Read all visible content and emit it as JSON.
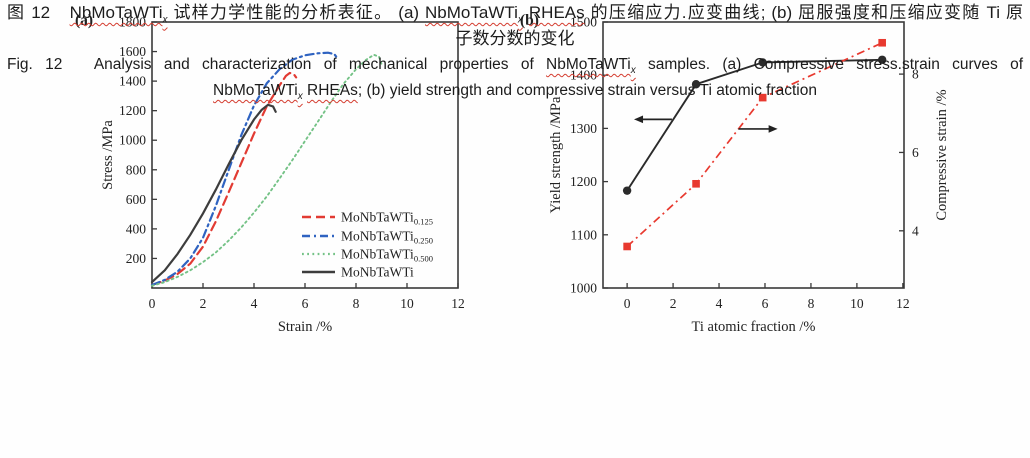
{
  "figure": {
    "panel_a_label": "(a)",
    "panel_b_label": "(b)"
  },
  "chart_data": [
    {
      "type": "line",
      "panel": "a",
      "panel_label": "(a)",
      "xlabel": "Strain /%",
      "ylabel": "Stress /MPa",
      "xlim": [
        0,
        12
      ],
      "ylim": [
        0,
        1800
      ],
      "xticks": [
        0,
        2,
        4,
        6,
        8,
        10,
        12
      ],
      "yticks": [
        200,
        400,
        600,
        800,
        1000,
        1200,
        1400,
        1600,
        1800
      ],
      "grid": false,
      "legend_position": "inside lower right",
      "series": [
        {
          "name": "MoNbTaWTi0.125",
          "legend_base": "MoNbTaWTi",
          "legend_sub": "0.125",
          "color": "#e23b33",
          "style": "dashed",
          "points": [
            [
              0,
              20
            ],
            [
              0.5,
              50
            ],
            [
              1,
              95
            ],
            [
              1.5,
              165
            ],
            [
              2,
              280
            ],
            [
              2.5,
              450
            ],
            [
              3,
              645
            ],
            [
              3.5,
              845
            ],
            [
              4,
              1045
            ],
            [
              4.5,
              1230
            ],
            [
              5,
              1370
            ],
            [
              5.25,
              1435
            ],
            [
              5.4,
              1455
            ],
            [
              5.55,
              1450
            ],
            [
              5.65,
              1425
            ]
          ]
        },
        {
          "name": "MoNbTaWTi0.250",
          "legend_base": "MoNbTaWTi",
          "legend_sub": "0.250",
          "color": "#2f63c1",
          "style": "dashdot",
          "points": [
            [
              0,
              20
            ],
            [
              0.5,
              55
            ],
            [
              1,
              110
            ],
            [
              1.5,
              200
            ],
            [
              2,
              340
            ],
            [
              2.5,
              555
            ],
            [
              3,
              795
            ],
            [
              3.5,
              1035
            ],
            [
              4,
              1235
            ],
            [
              4.5,
              1385
            ],
            [
              5,
              1480
            ],
            [
              5.5,
              1545
            ],
            [
              6,
              1575
            ],
            [
              6.5,
              1588
            ],
            [
              6.9,
              1592
            ],
            [
              7.15,
              1583
            ],
            [
              7.3,
              1548
            ]
          ]
        },
        {
          "name": "MoNbTaWTi0.500",
          "legend_base": "MoNbTaWTi",
          "legend_sub": "0.500",
          "color": "#74c286",
          "style": "dotted",
          "points": [
            [
              0,
              15
            ],
            [
              0.5,
              40
            ],
            [
              1,
              75
            ],
            [
              1.5,
              120
            ],
            [
              2,
              175
            ],
            [
              2.5,
              240
            ],
            [
              3,
              320
            ],
            [
              3.5,
              410
            ],
            [
              4,
              510
            ],
            [
              4.5,
              620
            ],
            [
              5,
              740
            ],
            [
              5.5,
              865
            ],
            [
              6,
              995
            ],
            [
              6.5,
              1125
            ],
            [
              7,
              1255
            ],
            [
              7.5,
              1380
            ],
            [
              8,
              1480
            ],
            [
              8.4,
              1545
            ],
            [
              8.7,
              1578
            ],
            [
              8.9,
              1565
            ],
            [
              9.0,
              1515
            ]
          ]
        },
        {
          "name": "MoNbTaWTi",
          "legend_base": "MoNbTaWTi",
          "legend_sub": "",
          "color": "#3d3d3d",
          "style": "solid",
          "points": [
            [
              0,
              40
            ],
            [
              0.5,
              120
            ],
            [
              1,
              230
            ],
            [
              1.5,
              360
            ],
            [
              2,
              505
            ],
            [
              2.5,
              665
            ],
            [
              3,
              835
            ],
            [
              3.5,
              1000
            ],
            [
              4,
              1140
            ],
            [
              4.3,
              1205
            ],
            [
              4.55,
              1240
            ],
            [
              4.75,
              1228
            ],
            [
              4.85,
              1192
            ]
          ]
        }
      ]
    },
    {
      "type": "line",
      "panel": "b",
      "panel_label": "(b)",
      "xlabel": "Ti atomic fraction /%",
      "ylabel_left": "Yield strength /MPa",
      "ylabel_right": "Compressive strain /%",
      "xlim": [
        -1.05,
        12.05
      ],
      "xticks": [
        0,
        2,
        4,
        6,
        8,
        10,
        12
      ],
      "ylim_left": [
        1000,
        1500
      ],
      "yticks_left": [
        1000,
        1100,
        1200,
        1300,
        1400,
        1500
      ],
      "ylim_right": [
        2.54,
        9.33
      ],
      "yticks_right": [
        4,
        6,
        8
      ],
      "grid": false,
      "series": [
        {
          "name": "yield-strength",
          "axis": "left",
          "color": "#2b2b2b",
          "style": "solid",
          "marker": "circle",
          "x": [
            0,
            3,
            5.9,
            11.1
          ],
          "y": [
            1183,
            1383,
            1424,
            1429
          ]
        },
        {
          "name": "compressive-strain",
          "axis": "right",
          "color": "#e8392f",
          "style": "dashdot",
          "marker": "square",
          "x": [
            0,
            3,
            5.9,
            11.1
          ],
          "y": [
            3.6,
            5.2,
            7.4,
            8.8
          ]
        }
      ],
      "annotations": [
        {
          "type": "arrow",
          "direction": "left",
          "x_tail": 1.95,
          "x_head": 0.3,
          "y_left_axis": 1317
        },
        {
          "type": "arrow",
          "direction": "right",
          "x_tail": 4.85,
          "x_head": 6.55,
          "y_left_axis": 1299
        }
      ]
    }
  ],
  "caption": {
    "zh_line1": [
      {
        "t": "图 12　"
      },
      {
        "t": "NbMoTaWTi",
        "w": true
      },
      {
        "t": "x",
        "w": true,
        "sub": true
      },
      {
        "t": " 试样力学性能的分析表征。 (a) "
      },
      {
        "t": "NbMoTaWTi",
        "w": true
      },
      {
        "t": "x",
        "w": true,
        "sub": true
      },
      {
        "t": " "
      },
      {
        "t": "RHEAs",
        "w": true
      },
      {
        "t": " 的压缩应力.应变曲线; (b) 屈服强度和压缩应变随 Ti 原"
      }
    ],
    "zh_line2": [
      {
        "t": "子数分数的变化"
      }
    ],
    "en_line1": [
      {
        "t": "Fig. 12　Analysis and characterization of mechanical properties of "
      },
      {
        "t": "NbMoTaWTi",
        "w": true
      },
      {
        "t": "x",
        "w": true,
        "sub": true
      },
      {
        "t": " samples. (a) Compressive stress.strain curves of"
      }
    ],
    "en_line2": [
      {
        "t": "NbMoTaWTi",
        "w": true
      },
      {
        "t": "x",
        "w": true,
        "sub": true
      },
      {
        "t": " "
      },
      {
        "t": "RHEAs",
        "w": true
      },
      {
        "t": "; (b) yield strength and compressive strain versus Ti atomic fraction"
      }
    ]
  },
  "colors": {
    "axis": "#3a3a3a",
    "tick_text": "#222222",
    "wavy_underline": "#d43c2f",
    "series_red": "#e23b33",
    "series_blue": "#2f63c1",
    "series_green": "#74c286",
    "series_black": "#3d3d3d"
  }
}
